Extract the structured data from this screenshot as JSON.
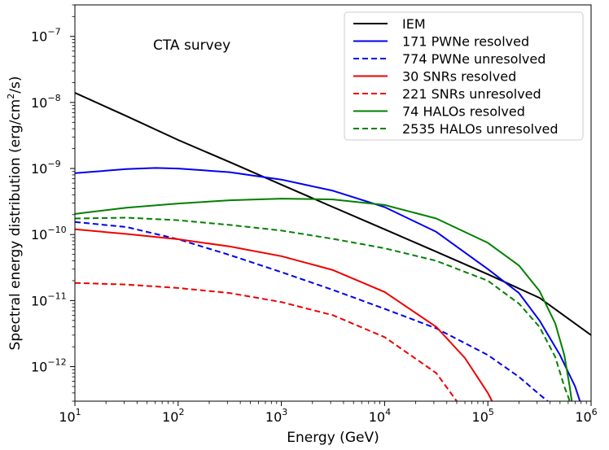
{
  "chart_data": {
    "type": "line",
    "title": "",
    "annotation": "CTA survey",
    "xlabel": "Energy (GeV)",
    "ylabel_parts": [
      "Spectral energy distribution (erg/cm",
      "2",
      "/s)"
    ],
    "xscale": "log",
    "yscale": "log",
    "xlim": [
      10,
      1000000
    ],
    "ylim": [
      3e-13,
      3e-07
    ],
    "legend_position": "top-right",
    "x_ticks": [
      {
        "value": 10,
        "base": "10",
        "exp": "1"
      },
      {
        "value": 100,
        "base": "10",
        "exp": "2"
      },
      {
        "value": 1000,
        "base": "10",
        "exp": "3"
      },
      {
        "value": 10000,
        "base": "10",
        "exp": "4"
      },
      {
        "value": 100000,
        "base": "10",
        "exp": "5"
      },
      {
        "value": 1000000,
        "base": "10",
        "exp": "6"
      }
    ],
    "y_ticks": [
      {
        "value": 1e-12,
        "base": "10",
        "exp": "−12"
      },
      {
        "value": 1e-11,
        "base": "10",
        "exp": "−11"
      },
      {
        "value": 1e-10,
        "base": "10",
        "exp": "−10"
      },
      {
        "value": 1e-09,
        "base": "10",
        "exp": "−9"
      },
      {
        "value": 1e-08,
        "base": "10",
        "exp": "−8"
      },
      {
        "value": 1e-07,
        "base": "10",
        "exp": "−7"
      }
    ],
    "series": [
      {
        "name": "IEM",
        "color": "#000000",
        "dash": "solid",
        "x": [
          10,
          31.6,
          100,
          316,
          1000,
          3162,
          10000,
          31623,
          100000,
          316228,
          1000000
        ],
        "y": [
          1.4e-08,
          6.2e-09,
          2.7e-09,
          1.25e-09,
          5.7e-10,
          2.6e-10,
          1.2e-10,
          5.5e-11,
          2.5e-11,
          1.1e-11,
          3e-12
        ]
      },
      {
        "name": "171 PWNe resolved",
        "color": "#0000ee",
        "dash": "solid",
        "x": [
          10,
          31.6,
          60,
          100,
          316,
          1000,
          3162,
          10000,
          31623,
          100000,
          200000,
          316228,
          500000,
          700000,
          780000
        ],
        "y": [
          8.5e-10,
          9.8e-10,
          1.02e-09,
          1e-09,
          8.8e-10,
          6.8e-10,
          4.6e-10,
          2.6e-10,
          1.1e-10,
          3e-11,
          1.3e-11,
          5e-12,
          1.5e-12,
          5e-13,
          3e-13
        ]
      },
      {
        "name": "774 PWNe unresolved",
        "color": "#0000ee",
        "dash": "dashed",
        "x": [
          10,
          31.6,
          100,
          316,
          1000,
          3162,
          10000,
          31623,
          100000,
          200000,
          316228,
          380000
        ],
        "y": [
          1.55e-10,
          1.3e-10,
          8.5e-11,
          4.9e-11,
          2.7e-11,
          1.45e-11,
          7.5e-12,
          3.8e-12,
          1.5e-12,
          7e-13,
          3.8e-13,
          3e-13
        ]
      },
      {
        "name": "30 SNRs resolved",
        "color": "#ee0000",
        "dash": "solid",
        "x": [
          10,
          31.6,
          100,
          316,
          1000,
          3162,
          10000,
          31623,
          60000,
          100000,
          110000
        ],
        "y": [
          1.2e-10,
          1.02e-10,
          8.5e-11,
          6.6e-11,
          4.7e-11,
          2.9e-11,
          1.35e-11,
          4e-12,
          1.35e-12,
          4e-13,
          3e-13
        ]
      },
      {
        "name": "221 SNRs unresolved",
        "color": "#ee0000",
        "dash": "dashed",
        "x": [
          10,
          31.6,
          100,
          316,
          1000,
          3162,
          10000,
          31623,
          50000
        ],
        "y": [
          1.85e-11,
          1.75e-11,
          1.55e-11,
          1.3e-11,
          9.5e-12,
          6e-12,
          2.8e-12,
          8e-13,
          3e-13
        ]
      },
      {
        "name": "74 HALOs resolved",
        "color": "#008000",
        "dash": "solid",
        "x": [
          10,
          31.6,
          100,
          316,
          1000,
          3162,
          10000,
          31623,
          100000,
          200000,
          316228,
          450000,
          550000,
          620000,
          650000
        ],
        "y": [
          2.05e-10,
          2.55e-10,
          2.95e-10,
          3.3e-10,
          3.5e-10,
          3.4e-10,
          2.8e-10,
          1.75e-10,
          7.5e-11,
          3.4e-11,
          1.4e-11,
          4.5e-12,
          1.5e-12,
          5e-13,
          3e-13
        ]
      },
      {
        "name": "2535 HALOs unresolved",
        "color": "#008000",
        "dash": "dashed",
        "x": [
          10,
          31.6,
          100,
          316,
          1000,
          3162,
          10000,
          31623,
          100000,
          200000,
          316228,
          450000,
          550000,
          600000,
          620000
        ],
        "y": [
          1.75e-10,
          1.8e-10,
          1.65e-10,
          1.4e-10,
          1.15e-10,
          8.6e-11,
          6.2e-11,
          4e-11,
          2e-11,
          9e-12,
          4e-12,
          1.4e-12,
          5e-13,
          3.5e-13,
          3e-13
        ]
      }
    ]
  }
}
